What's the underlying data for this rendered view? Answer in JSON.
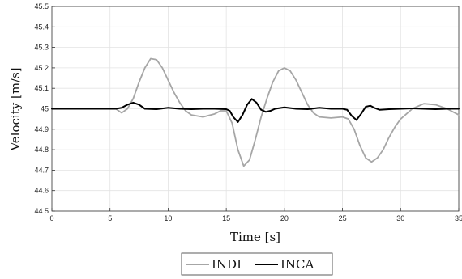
{
  "chart_data": {
    "type": "line",
    "title": "",
    "xlabel": "Time [s]",
    "ylabel": "Velocity [m/s]",
    "xlim": [
      0,
      35
    ],
    "ylim": [
      44.5,
      45.5
    ],
    "xticks": [
      0,
      5,
      10,
      15,
      20,
      25,
      30,
      35
    ],
    "yticks": [
      44.5,
      44.6,
      44.7,
      44.8,
      44.9,
      45,
      45.1,
      45.2,
      45.3,
      45.4,
      45.5
    ],
    "xtick_labels": [
      "0",
      "5",
      "10",
      "15",
      "20",
      "25",
      "30",
      "35"
    ],
    "ytick_labels": [
      "44.5",
      "44.6",
      "44.7",
      "44.8",
      "44.9",
      "45",
      "45.1",
      "45.2",
      "45.3",
      "45.4",
      "45.5"
    ],
    "grid": true,
    "legend_position": "bottom-center",
    "series": [
      {
        "name": "INDI",
        "color": "#a6a6a6",
        "x": [
          0,
          5.0,
          5.5,
          6.0,
          6.5,
          7.0,
          7.5,
          8.0,
          8.5,
          9.0,
          9.5,
          10.0,
          10.5,
          11.0,
          11.5,
          12.0,
          13.0,
          14.0,
          14.5,
          15.0,
          15.5,
          16.0,
          16.5,
          17.0,
          17.5,
          18.0,
          18.5,
          19.0,
          19.5,
          20.0,
          20.5,
          21.0,
          21.5,
          22.0,
          22.5,
          23.0,
          24.0,
          25.0,
          25.5,
          26.0,
          26.5,
          27.0,
          27.5,
          28.0,
          28.5,
          29.0,
          29.5,
          30.0,
          31.0,
          32.0,
          33.0,
          34.0,
          35.0
        ],
        "y": [
          45.0,
          45.0,
          45.0,
          44.98,
          45.0,
          45.05,
          45.13,
          45.2,
          45.245,
          45.24,
          45.2,
          45.14,
          45.08,
          45.03,
          44.99,
          44.97,
          44.96,
          44.975,
          44.99,
          44.99,
          44.93,
          44.8,
          44.72,
          44.75,
          44.85,
          44.96,
          45.05,
          45.13,
          45.185,
          45.2,
          45.185,
          45.14,
          45.08,
          45.02,
          44.98,
          44.96,
          44.955,
          44.96,
          44.95,
          44.9,
          44.82,
          44.76,
          44.74,
          44.76,
          44.8,
          44.86,
          44.91,
          44.95,
          45.0,
          45.025,
          45.02,
          45.0,
          44.97
        ]
      },
      {
        "name": "INCA",
        "color": "#000000",
        "x": [
          0,
          5.0,
          5.5,
          6.0,
          6.5,
          7.0,
          7.5,
          8.0,
          9.0,
          10.0,
          11.0,
          12.0,
          13.0,
          14.0,
          15.0,
          15.3,
          15.6,
          16.0,
          16.4,
          16.8,
          17.2,
          17.6,
          18.0,
          18.4,
          18.8,
          19.2,
          20.0,
          21.0,
          22.0,
          23.0,
          24.0,
          25.0,
          25.4,
          25.8,
          26.2,
          26.6,
          27.0,
          27.4,
          27.8,
          28.2,
          29.0,
          30.0,
          31.0,
          32.0,
          33.0,
          34.0,
          35.0
        ],
        "y": [
          45.0,
          45.0,
          45.0,
          45.005,
          45.02,
          45.03,
          45.02,
          45.0,
          44.998,
          45.005,
          45.0,
          44.998,
          45.0,
          45.0,
          44.998,
          44.99,
          44.96,
          44.935,
          44.97,
          45.02,
          45.048,
          45.03,
          44.995,
          44.985,
          44.99,
          45.0,
          45.007,
          45.0,
          44.998,
          45.005,
          45.0,
          45.0,
          44.995,
          44.965,
          44.945,
          44.975,
          45.01,
          45.015,
          45.003,
          44.995,
          44.998,
          45.0,
          45.002,
          45.0,
          44.998,
          45.0,
          45.0
        ]
      }
    ]
  }
}
